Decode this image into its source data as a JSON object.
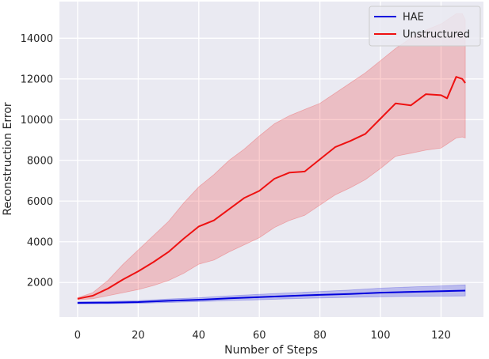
{
  "chart_data": {
    "type": "line",
    "xlabel": "Number of Steps",
    "ylabel": "Reconstruction Error",
    "xlim": [
      -6,
      134
    ],
    "ylim": [
      300,
      15800
    ],
    "xticks": [
      0,
      20,
      40,
      60,
      80,
      100,
      120
    ],
    "yticks": [
      2000,
      4000,
      6000,
      8000,
      10000,
      12000,
      14000
    ],
    "grid": true,
    "legend_position": "top-right",
    "background_color": "#eaeaf2",
    "series": [
      {
        "name": "HAE",
        "color": "#0000dd",
        "x": [
          0,
          10,
          20,
          30,
          40,
          50,
          60,
          70,
          80,
          90,
          100,
          110,
          120,
          128
        ],
        "y": [
          1000,
          1010,
          1040,
          1100,
          1150,
          1220,
          1280,
          1340,
          1390,
          1440,
          1500,
          1540,
          1570,
          1600
        ],
        "lower": [
          950,
          955,
          975,
          1020,
          1060,
          1110,
          1150,
          1200,
          1240,
          1270,
          1300,
          1320,
          1330,
          1340
        ],
        "upper": [
          1050,
          1070,
          1110,
          1190,
          1250,
          1340,
          1420,
          1490,
          1560,
          1630,
          1720,
          1780,
          1830,
          1880
        ]
      },
      {
        "name": "Unstructured",
        "color": "#ee1111",
        "x": [
          0,
          5,
          10,
          15,
          20,
          25,
          30,
          35,
          40,
          45,
          50,
          55,
          60,
          65,
          70,
          75,
          80,
          85,
          90,
          95,
          100,
          105,
          110,
          115,
          120,
          122,
          125,
          127,
          128
        ],
        "y": [
          1200,
          1350,
          1700,
          2150,
          2550,
          3000,
          3500,
          4150,
          4750,
          5050,
          5600,
          6150,
          6500,
          7100,
          7400,
          7450,
          8050,
          8650,
          8950,
          9300,
          10050,
          10800,
          10700,
          11250,
          11200,
          11050,
          12100,
          12000,
          11800
        ],
        "lower": [
          1150,
          1200,
          1350,
          1500,
          1650,
          1850,
          2100,
          2450,
          2900,
          3100,
          3500,
          3850,
          4200,
          4700,
          5050,
          5300,
          5800,
          6300,
          6650,
          7050,
          7600,
          8200,
          8350,
          8500,
          8600,
          8800,
          9100,
          9150,
          9100
        ],
        "upper": [
          1250,
          1500,
          2100,
          2900,
          3600,
          4300,
          5000,
          5900,
          6700,
          7300,
          8000,
          8550,
          9200,
          9800,
          10200,
          10500,
          10800,
          11300,
          11800,
          12300,
          12900,
          13500,
          14000,
          14400,
          14700,
          14900,
          15200,
          15200,
          14900
        ]
      }
    ]
  }
}
